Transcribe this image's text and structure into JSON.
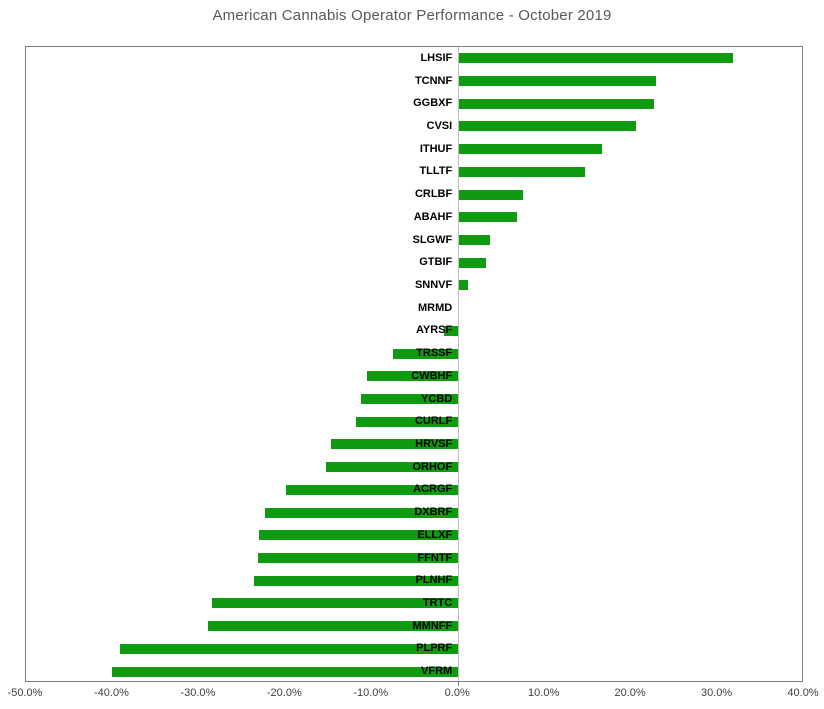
{
  "title": "American Cannabis Operator Performance - October 2019",
  "colors": {
    "bar": "#0f9b10",
    "title_text": "#595959",
    "axis_text": "#404040",
    "plot_border": "#7f7f7f",
    "zero_axis_line": "#bfbfbf"
  },
  "chart_data": {
    "type": "bar",
    "orientation": "horizontal",
    "title": "American Cannabis Operator Performance - October 2019",
    "xlabel": "",
    "ylabel": "",
    "xlim": [
      -50,
      40
    ],
    "grid": false,
    "legend": false,
    "value_unit": "percent",
    "categories": [
      "LHSIF",
      "TCNNF",
      "GGBXF",
      "CVSI",
      "ITHUF",
      "TLLTF",
      "CRLBF",
      "ABAHF",
      "SLGWF",
      "GTBIF",
      "SNNVF",
      "MRMD",
      "AYRSF",
      "TRSSF",
      "CWBHF",
      "YCBD",
      "CURLF",
      "HRVSF",
      "ORHOF",
      "ACRGF",
      "DXBRF",
      "ELLXF",
      "FFNTF",
      "PLNHF",
      "TRTC",
      "MMNFF",
      "PLPRF",
      "VFRM"
    ],
    "values": [
      31.7,
      22.8,
      22.5,
      20.4,
      16.5,
      14.6,
      7.4,
      6.7,
      3.6,
      3.1,
      1.0,
      0.0,
      -1.7,
      -7.5,
      -10.6,
      -11.2,
      -11.8,
      -14.7,
      -15.3,
      -19.9,
      -22.4,
      -23.1,
      -23.2,
      -23.6,
      -28.5,
      -28.9,
      -39.1,
      -40.1
    ],
    "x_tick_values": [
      -50,
      -40,
      -30,
      -20,
      -10,
      0,
      10,
      20,
      30,
      40
    ],
    "x_tick_labels": [
      "-50.0%",
      "-40.0%",
      "-30.0%",
      "-20.0%",
      "-10.0%",
      "0.0%",
      "10.0%",
      "20.0%",
      "30.0%",
      "40.0%"
    ]
  }
}
